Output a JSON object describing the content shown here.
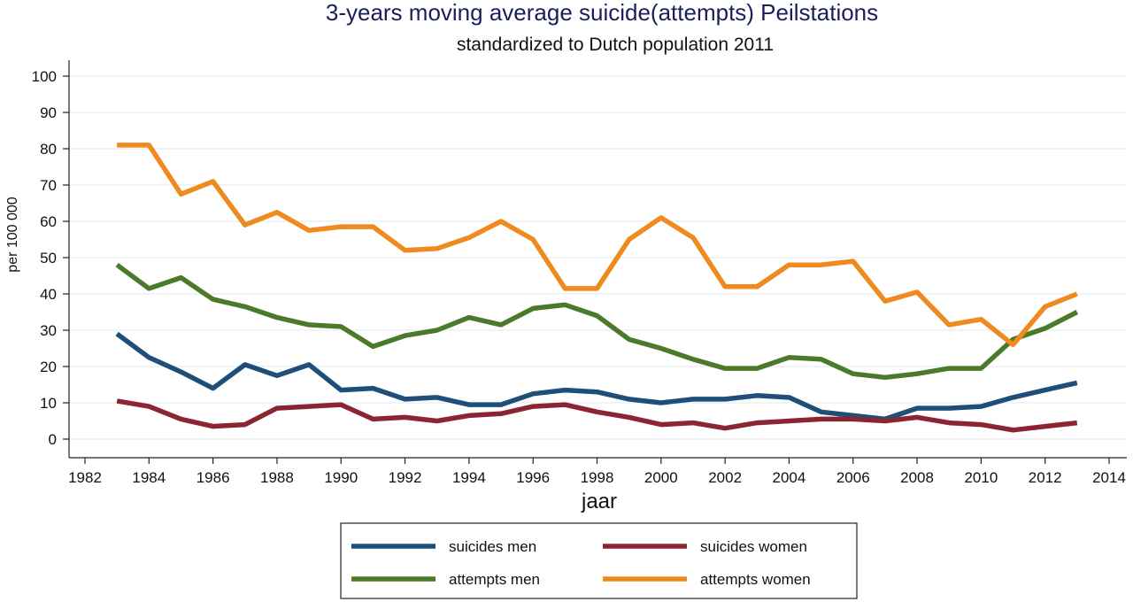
{
  "chart_data": {
    "type": "line",
    "title": "3-years moving average suicide(attempts) Peilstations",
    "subtitle": "standardized to Dutch population 2011",
    "xlabel": "jaar",
    "ylabel": "per 100 000",
    "xlim": [
      1982,
      2014
    ],
    "ylim": [
      0,
      100
    ],
    "xticks": [
      "1982",
      "1984",
      "1986",
      "1988",
      "1990",
      "1992",
      "1994",
      "1996",
      "1998",
      "2000",
      "2002",
      "2004",
      "2006",
      "2008",
      "2010",
      "2012",
      "2014"
    ],
    "yticks": [
      "0",
      "10",
      "20",
      "30",
      "40",
      "50",
      "60",
      "70",
      "80",
      "90",
      "100"
    ],
    "grid": "horizontal",
    "legend": "bottom",
    "x": [
      1983,
      1984,
      1985,
      1986,
      1987,
      1988,
      1989,
      1990,
      1991,
      1992,
      1993,
      1994,
      1995,
      1996,
      1997,
      1998,
      1999,
      2000,
      2001,
      2002,
      2003,
      2004,
      2005,
      2006,
      2007,
      2008,
      2009,
      2010,
      2011,
      2012,
      2013
    ],
    "series": [
      {
        "name": "suicides men",
        "color": "#1f4e79",
        "values": [
          29,
          22.5,
          18.5,
          14,
          20.5,
          17.5,
          20.5,
          13.5,
          14,
          11,
          11.5,
          9.5,
          9.5,
          12.5,
          13.5,
          13,
          11,
          10,
          11,
          11,
          12,
          11.5,
          7.5,
          6.5,
          5.5,
          8.5,
          8.5,
          9,
          11.5,
          13.5,
          15.5
        ]
      },
      {
        "name": "suicides women",
        "color": "#8b2532",
        "values": [
          10.5,
          9,
          5.5,
          3.5,
          4,
          8.5,
          9,
          9.5,
          5.5,
          6,
          5,
          6.5,
          7,
          9,
          9.5,
          7.5,
          6,
          4,
          4.5,
          3,
          4.5,
          5,
          5.5,
          5.5,
          5,
          6,
          4.5,
          4,
          2.5,
          3.5,
          4.5
        ]
      },
      {
        "name": "attempts men",
        "color": "#4b7a2a",
        "values": [
          48,
          41.5,
          44.5,
          38.5,
          36.5,
          33.5,
          31.5,
          31,
          25.5,
          28.5,
          30,
          33.5,
          31.5,
          36,
          37,
          34,
          27.5,
          25,
          22,
          19.5,
          19.5,
          22.5,
          22,
          18,
          17,
          18,
          19.5,
          19.5,
          27.5,
          30.5,
          35
        ]
      },
      {
        "name": "attempts women",
        "color": "#ee8a1e",
        "values": [
          81,
          81,
          67.5,
          71,
          59,
          62.5,
          57.5,
          58.5,
          58.5,
          52,
          52.5,
          55.5,
          60,
          55,
          41.5,
          41.5,
          55,
          61,
          55.5,
          42,
          42,
          48,
          48,
          49,
          38,
          40.5,
          31.5,
          33,
          26,
          36.5,
          40
        ]
      }
    ]
  }
}
